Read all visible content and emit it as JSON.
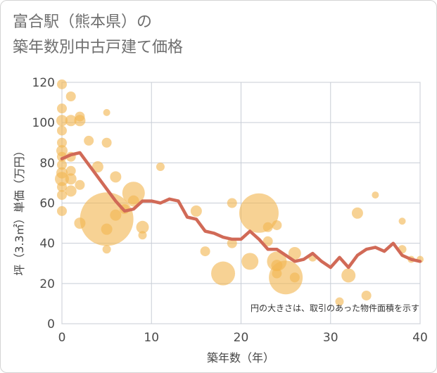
{
  "chart_title": {
    "line1": "富合駅（熊本県）の",
    "line2": "築年数別中古戸建て価格"
  },
  "chart_data": {
    "type": "scatter",
    "xlabel": "築年数（年）",
    "ylabel": "坪（3.3㎡）単価（万円）",
    "xlim": [
      0,
      40
    ],
    "ylim": [
      0,
      120
    ],
    "x_ticks": [
      0,
      10,
      20,
      30,
      40
    ],
    "y_ticks": [
      0,
      20,
      40,
      60,
      80,
      100,
      120
    ],
    "grid": true,
    "annotation": "円の大きさは、取引のあった物件面積を示す",
    "colors": {
      "bubble": "#f2b752",
      "line": "#d16a57",
      "grid": "#c8cdd6",
      "plot_border": "#b7bcc6"
    },
    "bubbles": [
      {
        "x": 0,
        "y": 119,
        "s": 7
      },
      {
        "x": 0,
        "y": 107,
        "s": 7
      },
      {
        "x": 0,
        "y": 101,
        "s": 8
      },
      {
        "x": 0,
        "y": 96,
        "s": 7
      },
      {
        "x": 0,
        "y": 90,
        "s": 7
      },
      {
        "x": 0,
        "y": 86,
        "s": 8
      },
      {
        "x": 0,
        "y": 83,
        "s": 7
      },
      {
        "x": 0,
        "y": 79,
        "s": 7
      },
      {
        "x": 0,
        "y": 75,
        "s": 8
      },
      {
        "x": 0,
        "y": 72,
        "s": 10
      },
      {
        "x": 0,
        "y": 68,
        "s": 7
      },
      {
        "x": 0,
        "y": 64,
        "s": 7
      },
      {
        "x": 0,
        "y": 56,
        "s": 7
      },
      {
        "x": 1,
        "y": 113,
        "s": 7
      },
      {
        "x": 1,
        "y": 101,
        "s": 8
      },
      {
        "x": 1,
        "y": 83,
        "s": 7
      },
      {
        "x": 1,
        "y": 76,
        "s": 7
      },
      {
        "x": 1,
        "y": 72,
        "s": 8
      },
      {
        "x": 1,
        "y": 66,
        "s": 8
      },
      {
        "x": 2,
        "y": 103,
        "s": 7
      },
      {
        "x": 2,
        "y": 101,
        "s": 8
      },
      {
        "x": 2,
        "y": 69,
        "s": 7
      },
      {
        "x": 2,
        "y": 50,
        "s": 8
      },
      {
        "x": 3,
        "y": 91,
        "s": 7
      },
      {
        "x": 4,
        "y": 78,
        "s": 8
      },
      {
        "x": 5,
        "y": 105,
        "s": 5
      },
      {
        "x": 5,
        "y": 90,
        "s": 7
      },
      {
        "x": 5,
        "y": 52,
        "s": 38
      },
      {
        "x": 5,
        "y": 47,
        "s": 8
      },
      {
        "x": 5,
        "y": 37,
        "s": 6
      },
      {
        "x": 6,
        "y": 73,
        "s": 8
      },
      {
        "x": 6,
        "y": 54,
        "s": 8
      },
      {
        "x": 7,
        "y": 57,
        "s": 7
      },
      {
        "x": 8,
        "y": 65,
        "s": 16
      },
      {
        "x": 8,
        "y": 61,
        "s": 8
      },
      {
        "x": 9,
        "y": 48,
        "s": 9
      },
      {
        "x": 9,
        "y": 44,
        "s": 6
      },
      {
        "x": 11,
        "y": 78,
        "s": 6
      },
      {
        "x": 15,
        "y": 56,
        "s": 8
      },
      {
        "x": 16,
        "y": 36,
        "s": 7
      },
      {
        "x": 18,
        "y": 25,
        "s": 17
      },
      {
        "x": 19,
        "y": 60,
        "s": 7
      },
      {
        "x": 19,
        "y": 40,
        "s": 7
      },
      {
        "x": 21,
        "y": 31,
        "s": 12
      },
      {
        "x": 22,
        "y": 55,
        "s": 28
      },
      {
        "x": 23,
        "y": 48,
        "s": 7
      },
      {
        "x": 23,
        "y": 41,
        "s": 7
      },
      {
        "x": 24,
        "y": 49,
        "s": 7
      },
      {
        "x": 24,
        "y": 31,
        "s": 14
      },
      {
        "x": 24,
        "y": 29,
        "s": 8
      },
      {
        "x": 24,
        "y": 25,
        "s": 7
      },
      {
        "x": 25,
        "y": 23,
        "s": 24
      },
      {
        "x": 26,
        "y": 35,
        "s": 9
      },
      {
        "x": 26,
        "y": 23,
        "s": 7
      },
      {
        "x": 28,
        "y": 33,
        "s": 6
      },
      {
        "x": 31,
        "y": 11,
        "s": 6
      },
      {
        "x": 32,
        "y": 24,
        "s": 10
      },
      {
        "x": 33,
        "y": 55,
        "s": 8
      },
      {
        "x": 34,
        "y": 14,
        "s": 7
      },
      {
        "x": 35,
        "y": 64,
        "s": 5
      },
      {
        "x": 38,
        "y": 51,
        "s": 5
      },
      {
        "x": 38,
        "y": 37,
        "s": 6
      },
      {
        "x": 39,
        "y": 32,
        "s": 5
      },
      {
        "x": 40,
        "y": 32,
        "s": 5
      }
    ],
    "trend_line": {
      "x": [
        0,
        1,
        2,
        3,
        4,
        5,
        6,
        7,
        8,
        9,
        10,
        11,
        12,
        13,
        14,
        15,
        16,
        17,
        18,
        19,
        20,
        21,
        22,
        23,
        24,
        25,
        26,
        27,
        28,
        29,
        30,
        31,
        32,
        33,
        34,
        35,
        36,
        37,
        38,
        39,
        40
      ],
      "y": [
        82,
        84,
        85,
        79,
        73,
        67,
        61,
        56,
        57,
        61,
        61,
        60,
        62,
        61,
        53,
        52,
        46,
        45,
        43,
        42,
        42,
        46,
        42,
        37,
        37,
        34,
        31,
        32,
        35,
        31,
        28,
        33,
        28,
        34,
        37,
        38,
        36,
        40,
        34,
        32,
        31
      ]
    }
  }
}
